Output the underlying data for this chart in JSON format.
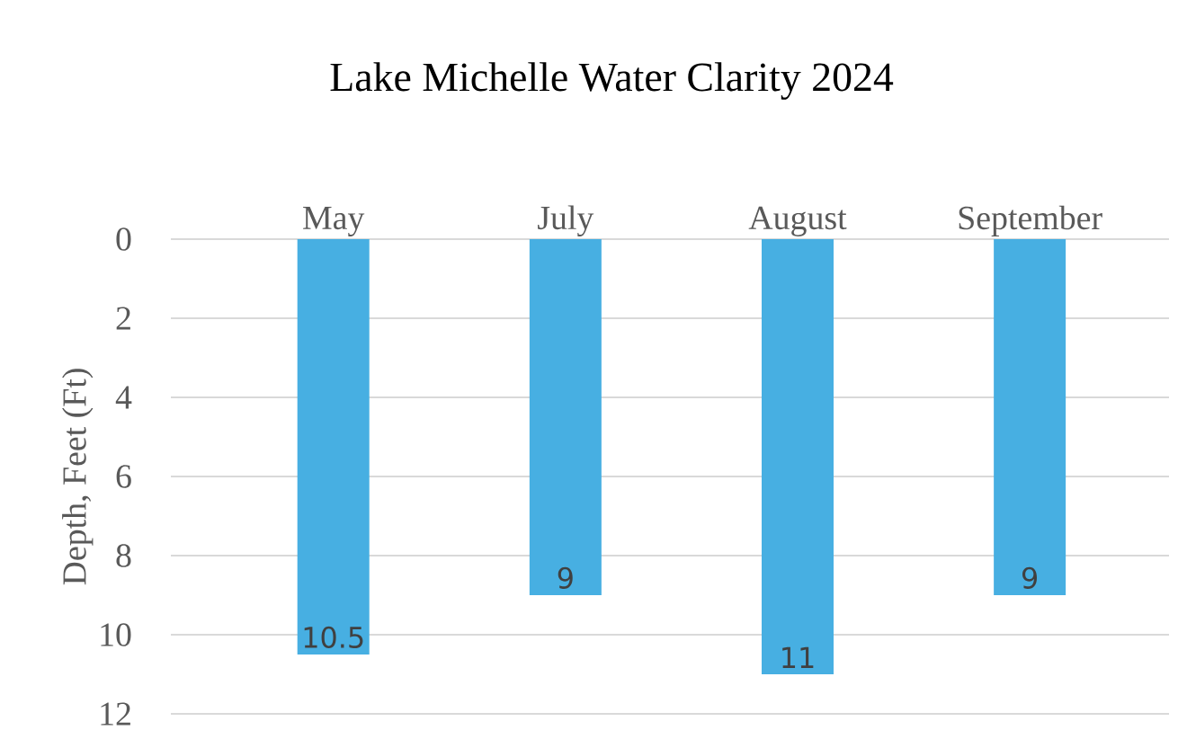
{
  "chart_data": {
    "type": "bar",
    "title": "Lake Michelle Water Clarity 2024",
    "ylabel": "Depth, Feet (Ft)",
    "categories": [
      "May",
      "July",
      "August",
      "September"
    ],
    "values": [
      10.5,
      9,
      11,
      9
    ],
    "color": "#47afe2",
    "ylim": [
      12,
      0
    ],
    "yticks": [
      0,
      2,
      4,
      6,
      8,
      10,
      12
    ],
    "grid": "y",
    "data_labels": true
  }
}
